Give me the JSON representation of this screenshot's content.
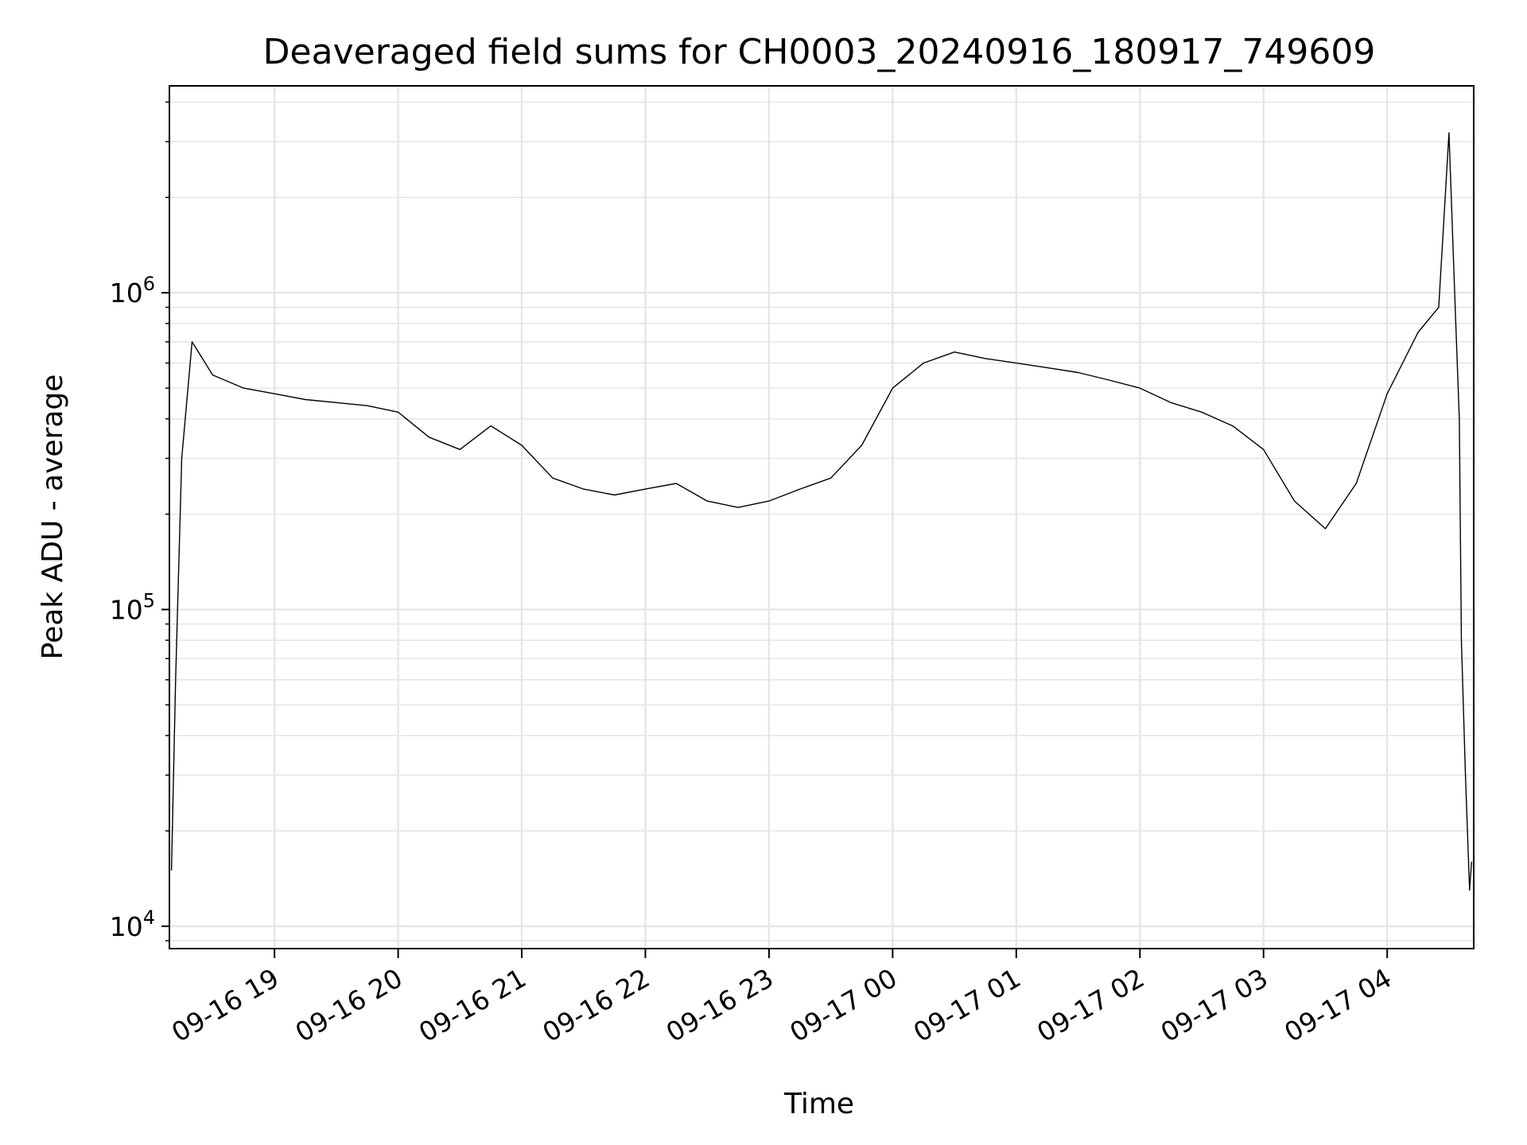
{
  "chart_data": {
    "type": "line",
    "title": "Deaveraged field sums for CH0003_20240916_180917_749609",
    "xlabel": "Time",
    "ylabel": "Peak ADU - average",
    "yscale": "log",
    "ylim": [
      8500,
      4500000
    ],
    "xlim": [
      "2024-09-16 18:09",
      "2024-09-17 04:42"
    ],
    "grid": true,
    "line_color": "#000000",
    "grid_color": "#e6e6e6",
    "x_ticks": [
      {
        "label": "09-16 19",
        "time": "2024-09-16 19:00"
      },
      {
        "label": "09-16 20",
        "time": "2024-09-16 20:00"
      },
      {
        "label": "09-16 21",
        "time": "2024-09-16 21:00"
      },
      {
        "label": "09-16 22",
        "time": "2024-09-16 22:00"
      },
      {
        "label": "09-16 23",
        "time": "2024-09-16 23:00"
      },
      {
        "label": "09-17 00",
        "time": "2024-09-17 00:00"
      },
      {
        "label": "09-17 01",
        "time": "2024-09-17 01:00"
      },
      {
        "label": "09-17 02",
        "time": "2024-09-17 02:00"
      },
      {
        "label": "09-17 03",
        "time": "2024-09-17 03:00"
      },
      {
        "label": "09-17 04",
        "time": "2024-09-17 04:00"
      }
    ],
    "y_ticks": [
      {
        "base": "10",
        "exp": "4",
        "value": 10000
      },
      {
        "base": "10",
        "exp": "5",
        "value": 100000
      },
      {
        "base": "10",
        "exp": "6",
        "value": 1000000
      }
    ],
    "series": [
      {
        "points": [
          [
            "2024-09-16 18:10",
            15000
          ],
          [
            "2024-09-16 18:12",
            60000
          ],
          [
            "2024-09-16 18:15",
            300000
          ],
          [
            "2024-09-16 18:20",
            700000
          ],
          [
            "2024-09-16 18:30",
            550000
          ],
          [
            "2024-09-16 18:45",
            500000
          ],
          [
            "2024-09-16 19:00",
            480000
          ],
          [
            "2024-09-16 19:15",
            460000
          ],
          [
            "2024-09-16 19:30",
            450000
          ],
          [
            "2024-09-16 19:45",
            440000
          ],
          [
            "2024-09-16 20:00",
            420000
          ],
          [
            "2024-09-16 20:15",
            350000
          ],
          [
            "2024-09-16 20:30",
            320000
          ],
          [
            "2024-09-16 20:45",
            380000
          ],
          [
            "2024-09-16 21:00",
            330000
          ],
          [
            "2024-09-16 21:15",
            260000
          ],
          [
            "2024-09-16 21:30",
            240000
          ],
          [
            "2024-09-16 21:45",
            230000
          ],
          [
            "2024-09-16 22:00",
            240000
          ],
          [
            "2024-09-16 22:15",
            250000
          ],
          [
            "2024-09-16 22:30",
            220000
          ],
          [
            "2024-09-16 22:45",
            210000
          ],
          [
            "2024-09-16 23:00",
            220000
          ],
          [
            "2024-09-16 23:15",
            240000
          ],
          [
            "2024-09-16 23:30",
            260000
          ],
          [
            "2024-09-16 23:45",
            330000
          ],
          [
            "2024-09-17 00:00",
            500000
          ],
          [
            "2024-09-17 00:15",
            600000
          ],
          [
            "2024-09-17 00:30",
            650000
          ],
          [
            "2024-09-17 00:45",
            620000
          ],
          [
            "2024-09-17 01:00",
            600000
          ],
          [
            "2024-09-17 01:15",
            580000
          ],
          [
            "2024-09-17 01:30",
            560000
          ],
          [
            "2024-09-17 01:45",
            530000
          ],
          [
            "2024-09-17 02:00",
            500000
          ],
          [
            "2024-09-17 02:15",
            450000
          ],
          [
            "2024-09-17 02:30",
            420000
          ],
          [
            "2024-09-17 02:45",
            380000
          ],
          [
            "2024-09-17 03:00",
            320000
          ],
          [
            "2024-09-17 03:15",
            220000
          ],
          [
            "2024-09-17 03:30",
            180000
          ],
          [
            "2024-09-17 03:45",
            250000
          ],
          [
            "2024-09-17 04:00",
            480000
          ],
          [
            "2024-09-17 04:15",
            750000
          ],
          [
            "2024-09-17 04:25",
            900000
          ],
          [
            "2024-09-17 04:30",
            3200000
          ],
          [
            "2024-09-17 04:33",
            900000
          ],
          [
            "2024-09-17 04:35",
            400000
          ],
          [
            "2024-09-17 04:36",
            80000
          ],
          [
            "2024-09-17 04:38",
            30000
          ],
          [
            "2024-09-17 04:40",
            13000
          ],
          [
            "2024-09-17 04:41",
            16000
          ]
        ]
      }
    ]
  }
}
